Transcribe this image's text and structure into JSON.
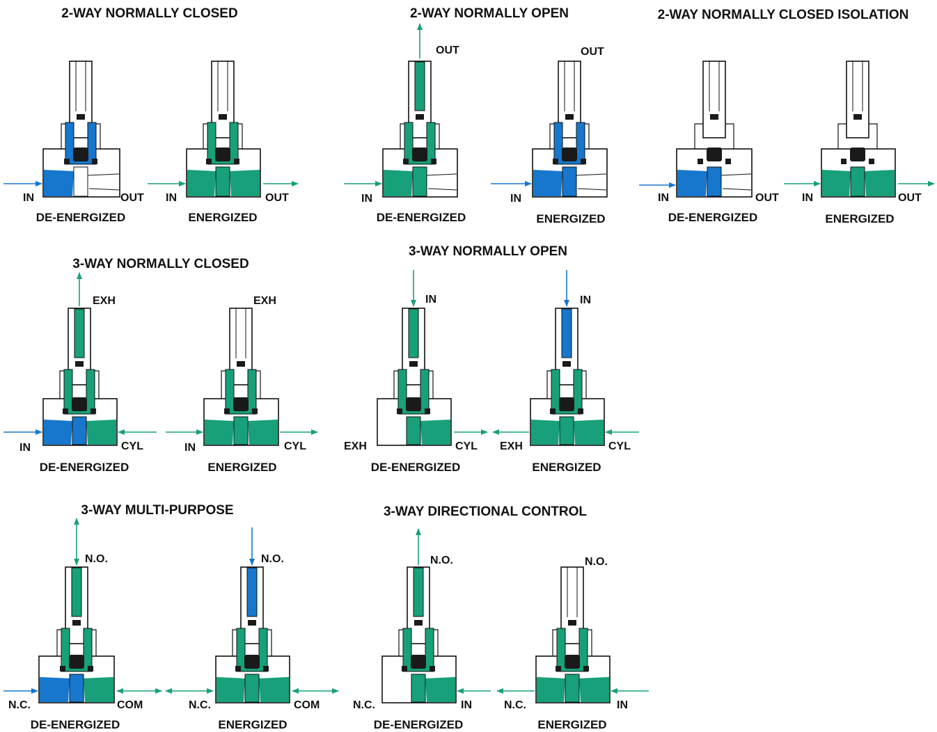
{
  "colors": {
    "fluid_a": "#18a07a",
    "fluid_b": "#1777cc",
    "seal": "#1a1a1a",
    "outline": "#111111"
  },
  "diagrams": [
    {
      "title": "2-WAY NORMALLY CLOSED",
      "units": [
        {
          "state": "DE-ENERGIZED",
          "ports": [
            "IN",
            "OUT"
          ]
        },
        {
          "state": "ENERGIZED",
          "ports": [
            "IN",
            "OUT"
          ]
        }
      ]
    },
    {
      "title": "2-WAY NORMALLY OPEN",
      "units": [
        {
          "state": "DE-ENERGIZED",
          "ports": [
            "OUT",
            "IN"
          ]
        },
        {
          "state": "ENERGIZED",
          "ports": [
            "OUT",
            "IN"
          ]
        }
      ]
    },
    {
      "title": "2-WAY NORMALLY CLOSED ISOLATION",
      "units": [
        {
          "state": "DE-ENERGIZED",
          "ports": [
            "IN",
            "OUT"
          ]
        },
        {
          "state": "ENERGIZED",
          "ports": [
            "IN",
            "OUT"
          ]
        }
      ]
    },
    {
      "title": "3-WAY NORMALLY CLOSED",
      "units": [
        {
          "state": "DE-ENERGIZED",
          "ports": [
            "EXH",
            "IN",
            "CYL"
          ]
        },
        {
          "state": "ENERGIZED",
          "ports": [
            "EXH",
            "IN",
            "CYL"
          ]
        }
      ]
    },
    {
      "title": "3-WAY NORMALLY OPEN",
      "units": [
        {
          "state": "DE-ENERGIZED",
          "ports": [
            "IN",
            "EXH",
            "CYL"
          ]
        },
        {
          "state": "ENERGIZED",
          "ports": [
            "IN",
            "EXH",
            "CYL"
          ]
        }
      ]
    },
    {
      "title": "3-WAY MULTI-PURPOSE",
      "units": [
        {
          "state": "DE-ENERGIZED",
          "ports": [
            "N.O.",
            "N.C.",
            "COM"
          ]
        },
        {
          "state": "ENERGIZED",
          "ports": [
            "N.O.",
            "N.C.",
            "COM"
          ]
        }
      ]
    },
    {
      "title": "3-WAY DIRECTIONAL CONTROL",
      "units": [
        {
          "state": "DE-ENERGIZED",
          "ports": [
            "N.O.",
            "N.C.",
            "IN"
          ]
        },
        {
          "state": "ENERGIZED",
          "ports": [
            "N.O.",
            "N.C.",
            "IN"
          ]
        }
      ]
    }
  ]
}
